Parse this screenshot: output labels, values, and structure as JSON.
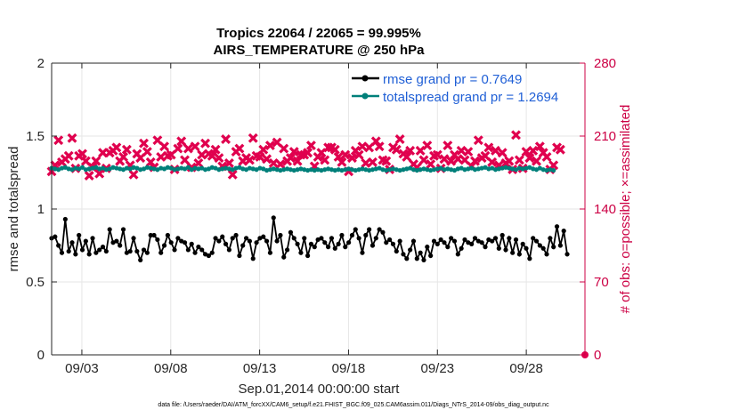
{
  "chart_data": {
    "type": "line",
    "title": "Tropics 22064 / 22065 = 99.995%",
    "subtitle": "AIRS_TEMPERATURE @ 250 hPa",
    "xlabel": "Sep.01,2014 00:00:00 start",
    "ylabel": "rmse and totalspread",
    "y2label": "# of obs: o=possible; ×=assimilated",
    "xlim": [
      1.3,
      31.3
    ],
    "ylim": [
      0,
      2
    ],
    "y2lim": [
      0,
      280
    ],
    "xticks": [
      3,
      8,
      13,
      18,
      23,
      28
    ],
    "xtick_labels": [
      "09/03",
      "09/08",
      "09/13",
      "09/18",
      "09/23",
      "09/28"
    ],
    "yticks": [
      0,
      0.5,
      1,
      1.5,
      2
    ],
    "ytick_labels": [
      "0",
      "0.5",
      "1",
      "1.5",
      "2"
    ],
    "y2ticks": [
      0,
      70,
      140,
      210,
      280
    ],
    "y2tick_labels": [
      "0",
      "70",
      "140",
      "210",
      "280"
    ],
    "legend_location": "top-right",
    "series": [
      {
        "name": "rmse grand pr = 0.7649",
        "axis": "left",
        "color": "#000000",
        "values": [
          0.8,
          0.81,
          0.75,
          0.7,
          0.93,
          0.71,
          0.77,
          0.69,
          0.82,
          0.72,
          0.78,
          0.69,
          0.8,
          0.7,
          0.72,
          0.74,
          0.71,
          0.86,
          0.77,
          0.78,
          0.75,
          0.86,
          0.7,
          0.71,
          0.8,
          0.71,
          0.65,
          0.72,
          0.7,
          0.82,
          0.82,
          0.79,
          0.7,
          0.75,
          0.82,
          0.77,
          0.72,
          0.8,
          0.78,
          0.77,
          0.72,
          0.76,
          0.7,
          0.74,
          0.72,
          0.69,
          0.68,
          0.7,
          0.8,
          0.78,
          0.81,
          0.76,
          0.72,
          0.8,
          0.82,
          0.68,
          0.75,
          0.8,
          0.78,
          0.66,
          0.77,
          0.8,
          0.81,
          0.78,
          0.7,
          0.94,
          0.78,
          0.82,
          0.67,
          0.72,
          0.84,
          0.8,
          0.76,
          0.7,
          0.8,
          0.68,
          0.76,
          0.74,
          0.79,
          0.8,
          0.77,
          0.74,
          0.8,
          0.73,
          0.76,
          0.82,
          0.74,
          0.77,
          0.82,
          0.86,
          0.8,
          0.7,
          0.82,
          0.86,
          0.75,
          0.8,
          0.86,
          0.84,
          0.77,
          0.79,
          0.76,
          0.71,
          0.78,
          0.69,
          0.66,
          0.72,
          0.78,
          0.66,
          0.7,
          0.65,
          0.74,
          0.68,
          0.78,
          0.76,
          0.79,
          0.77,
          0.74,
          0.8,
          0.78,
          0.69,
          0.73,
          0.79,
          0.77,
          0.76,
          0.8,
          0.78,
          0.77,
          0.74,
          0.79,
          0.78,
          0.8,
          0.73,
          0.82,
          0.72,
          0.8,
          0.7,
          0.79,
          0.69,
          0.76,
          0.73,
          0.66,
          0.8,
          0.78,
          0.75,
          0.73,
          0.69,
          0.8,
          0.74,
          0.88,
          0.75,
          0.85,
          0.69
        ]
      },
      {
        "name": "totalspread grand pr = 1.2694",
        "axis": "left",
        "color": "#00807a",
        "values": [
          1.28,
          1.275,
          1.27,
          1.28,
          1.285,
          1.275,
          1.27,
          1.28,
          1.275,
          1.285,
          1.27,
          1.275,
          1.28,
          1.285,
          1.275,
          1.28,
          1.27,
          1.275,
          1.285,
          1.28,
          1.275,
          1.27,
          1.28,
          1.275,
          1.285,
          1.28,
          1.27,
          1.275,
          1.285,
          1.28,
          1.275,
          1.27,
          1.28,
          1.275,
          1.285,
          1.28,
          1.27,
          1.275,
          1.28,
          1.275,
          1.285,
          1.27,
          1.28,
          1.275,
          1.28,
          1.27,
          1.275,
          1.285,
          1.28,
          1.27,
          1.275,
          1.28,
          1.275,
          1.27,
          1.28,
          1.285,
          1.275,
          1.27,
          1.28,
          1.275,
          1.27,
          1.28,
          1.275,
          1.265,
          1.27,
          1.275,
          1.27,
          1.265,
          1.27,
          1.275,
          1.27,
          1.265,
          1.27,
          1.275,
          1.27,
          1.265,
          1.27,
          1.265,
          1.27,
          1.265,
          1.27,
          1.275,
          1.27,
          1.265,
          1.27,
          1.265,
          1.27,
          1.275,
          1.27,
          1.265,
          1.27,
          1.275,
          1.27,
          1.265,
          1.27,
          1.275,
          1.28,
          1.27,
          1.265,
          1.27,
          1.275,
          1.27,
          1.265,
          1.27,
          1.275,
          1.28,
          1.27,
          1.265,
          1.27,
          1.275,
          1.27,
          1.265,
          1.27,
          1.275,
          1.28,
          1.27,
          1.275,
          1.27,
          1.265,
          1.275,
          1.28,
          1.27,
          1.275,
          1.28,
          1.27,
          1.275,
          1.28,
          1.285,
          1.275,
          1.28,
          1.27,
          1.275,
          1.28,
          1.285,
          1.28,
          1.275,
          1.27,
          1.28,
          1.275,
          1.28,
          1.285,
          1.275,
          1.27,
          1.28,
          1.27,
          1.265,
          1.27,
          1.265
        ]
      }
    ],
    "obs_assimilated": {
      "name": "# obs assimilated",
      "axis": "right",
      "marker": "×",
      "color": "#e0004e",
      "values": [
        176,
        182,
        206,
        185,
        188,
        191,
        208,
        179,
        191,
        193,
        186,
        172,
        180,
        186,
        174,
        194,
        179,
        194,
        196,
        199,
        186,
        190,
        197,
        182,
        173,
        193,
        189,
        203,
        195,
        185,
        180,
        206,
        190,
        200,
        191,
        192,
        178,
        198,
        205,
        187,
        198,
        180,
        200,
        184,
        192,
        203,
        193,
        191,
        197,
        189,
        181,
        207,
        184,
        173,
        195,
        198,
        186,
        189,
        187,
        208,
        191,
        190,
        197,
        188,
        201,
        184,
        204,
        183,
        198,
        186,
        189,
        195,
        186,
        192,
        192,
        194,
        201,
        181,
        190,
        194,
        187,
        199,
        199,
        197,
        190,
        185,
        192,
        176,
        189,
        196,
        192,
        200,
        184,
        199,
        185,
        205,
        200,
        187,
        186,
        178,
        199,
        197,
        207,
        193,
        190,
        196,
        183,
        180,
        196,
        187,
        201,
        183,
        191,
        192,
        179,
        188,
        201,
        186,
        192,
        188,
        196,
        187,
        195,
        181,
        186,
        206,
        189,
        191,
        199,
        185,
        196,
        182,
        194,
        184,
        186,
        178,
        211,
        187,
        179,
        195,
        189,
        196,
        186,
        200,
        194,
        190,
        178,
        182,
        199,
        197
      ]
    },
    "obs_possible_marker": {
      "name": "# obs possible",
      "marker": "o",
      "x": 31.3,
      "y2": 0
    },
    "footnote": "data file: /Users/raeder/DAI/ATM_forcXX/CAM6_setup/f.e21.FHIST_BGC.f09_025.CAM6assim.011/Diags_NTrS_2014-09/obs_diag_output.nc"
  },
  "colors": {
    "axis": "#262626",
    "right_axis": "#cc0044",
    "legend_text": "#1f5fd6",
    "grid": "#e6e6e6"
  }
}
